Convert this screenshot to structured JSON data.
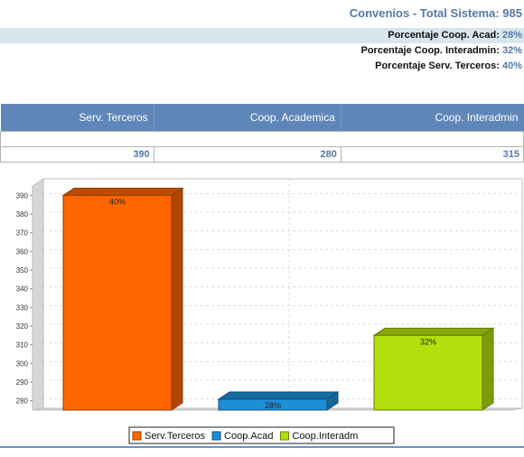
{
  "header": {
    "title_label": "Convenios - Total Sistema:",
    "title_value": "985"
  },
  "percentages": [
    {
      "label": "Porcentaje Coop. Acad:",
      "value": "28%"
    },
    {
      "label": "Porcentaje Coop. Interadmin:",
      "value": "32%"
    },
    {
      "label": "Porcentaje Serv. Terceros:",
      "value": "40%"
    }
  ],
  "table": {
    "headers": [
      "Serv. Terceros",
      "Coop. Academica",
      "Coop. Interadmin"
    ],
    "values": [
      "390",
      "280",
      "315"
    ]
  },
  "colors": {
    "serv_terceros": "#ff6600",
    "coop_acad": "#1c8fd6",
    "coop_interadm": "#b3df0c"
  },
  "chart_data": {
    "type": "bar",
    "categories": [
      "Serv.Terceros",
      "Coop.Acad",
      "Coop.Interadm"
    ],
    "values": [
      390,
      280,
      315
    ],
    "data_labels": [
      "40%",
      "28%",
      "32%"
    ],
    "ylim": [
      275,
      395
    ],
    "yticks": [
      280,
      290,
      300,
      310,
      320,
      330,
      340,
      350,
      360,
      370,
      380,
      390
    ],
    "grid": true,
    "legend": "bottom",
    "title": "",
    "xlabel": "",
    "ylabel": ""
  }
}
